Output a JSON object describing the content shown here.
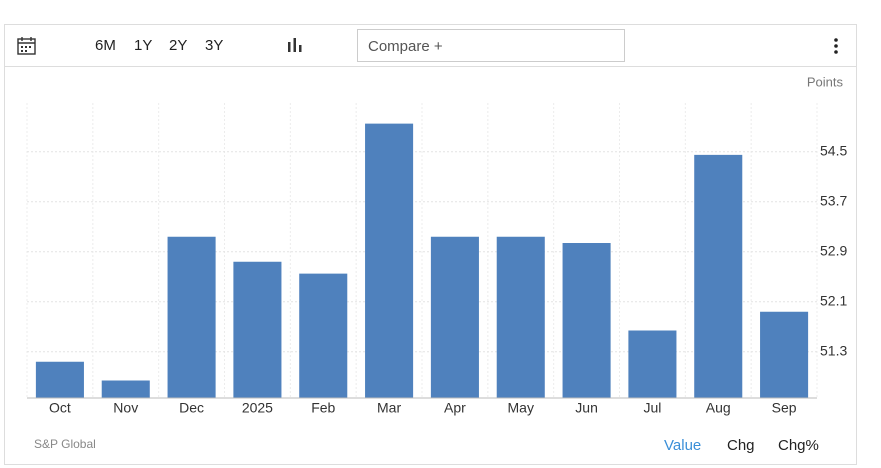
{
  "toolbar": {
    "ranges": [
      "6M",
      "1Y",
      "2Y",
      "3Y"
    ],
    "compare_placeholder": "Compare +"
  },
  "chart_data": {
    "type": "bar",
    "y_unit_label": "Points",
    "categories": [
      "Oct",
      "Nov",
      "Dec",
      "2025",
      "Feb",
      "Mar",
      "Apr",
      "May",
      "Jun",
      "Jul",
      "Aug",
      "Sep"
    ],
    "values": [
      51.14,
      50.84,
      53.14,
      52.74,
      52.55,
      54.95,
      53.14,
      53.14,
      53.04,
      51.64,
      54.45,
      51.94
    ],
    "color": "#4f81bd",
    "ylim": [
      50.56,
      55.28
    ],
    "yticks": [
      51.3,
      52.1,
      52.9,
      53.7,
      54.5
    ],
    "grid": true
  },
  "footer": {
    "source": "S&P Global",
    "modes": [
      "Value",
      "Chg",
      "Chg%"
    ],
    "active_mode_color": "#3a8fd8"
  }
}
